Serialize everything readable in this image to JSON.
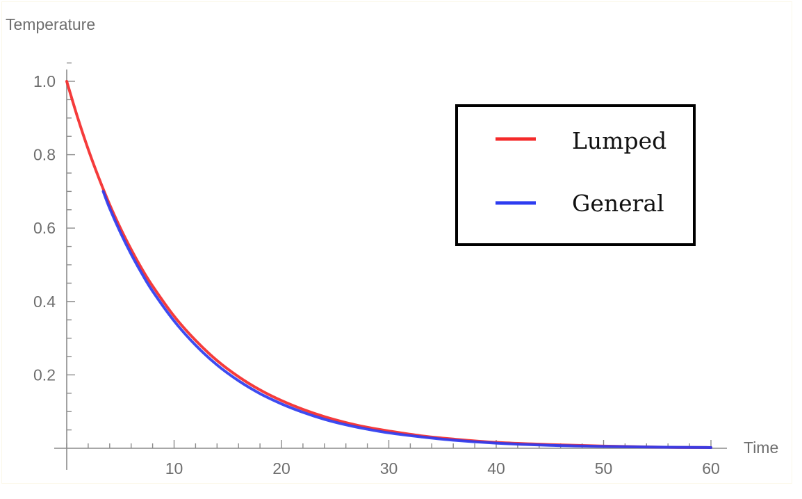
{
  "chart_data": {
    "type": "line",
    "xlabel": "Time",
    "ylabel": "Temperature",
    "xlim": [
      0,
      60
    ],
    "ylim": [
      0,
      1.05
    ],
    "x_ticks": [
      10,
      20,
      30,
      40,
      50,
      60
    ],
    "y_ticks": [
      0.2,
      0.4,
      0.6,
      0.8,
      1.0
    ],
    "x_tick_labels": [
      "10",
      "20",
      "30",
      "40",
      "50",
      "60"
    ],
    "y_tick_labels": [
      "0.2",
      "0.4",
      "0.6",
      "0.8",
      "1.0"
    ],
    "grid": false,
    "legend_position": "top-right",
    "series": [
      {
        "name": "Lumped",
        "color": "#f42a2a",
        "x": [
          0,
          1,
          2,
          3,
          4,
          5,
          6,
          7,
          8,
          10,
          12,
          14,
          16,
          18,
          20,
          22,
          24,
          26,
          28,
          30,
          33,
          36,
          40,
          45,
          50,
          55,
          60
        ],
        "y": [
          1.0,
          0.903,
          0.815,
          0.736,
          0.664,
          0.6,
          0.542,
          0.489,
          0.442,
          0.36,
          0.294,
          0.239,
          0.195,
          0.159,
          0.13,
          0.106,
          0.086,
          0.07,
          0.057,
          0.047,
          0.034,
          0.025,
          0.016,
          0.01,
          0.006,
          0.003,
          0.002
        ]
      },
      {
        "name": "General",
        "color": "#2d3cf0",
        "x": [
          3.4,
          4,
          5,
          6,
          7,
          8,
          10,
          12,
          14,
          16,
          18,
          20,
          22,
          24,
          26,
          28,
          30,
          33,
          36,
          40,
          45,
          50,
          55,
          60
        ],
        "y": [
          0.7,
          0.654,
          0.588,
          0.529,
          0.476,
          0.428,
          0.347,
          0.281,
          0.227,
          0.184,
          0.149,
          0.121,
          0.098,
          0.079,
          0.064,
          0.052,
          0.042,
          0.031,
          0.022,
          0.014,
          0.008,
          0.005,
          0.003,
          0.002
        ]
      }
    ]
  }
}
